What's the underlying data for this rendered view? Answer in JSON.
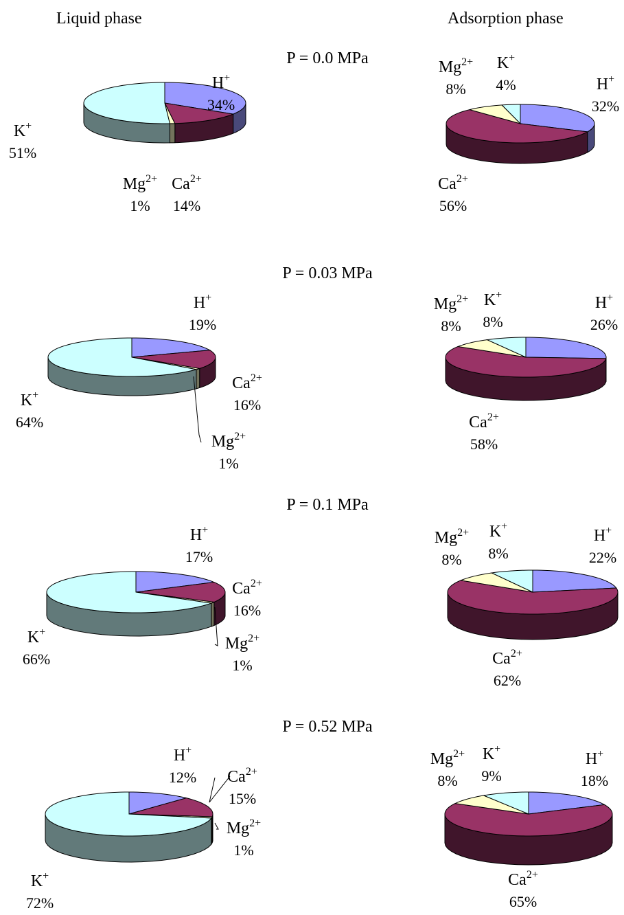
{
  "figure": {
    "liquid_header": "Liquid phase",
    "adsorption_header": "Adsorption phase"
  },
  "colors": {
    "H+": "#9999ff",
    "Ca2+": "#993366",
    "Mg2+": "#ffffcc",
    "K+": "#ccffff"
  },
  "chart_data": [
    {
      "type": "pie",
      "phase": "Liquid phase",
      "pressure": "P = 0.0 MPa",
      "slices": [
        {
          "ion": "H+",
          "value": 34,
          "label": "34%"
        },
        {
          "ion": "Ca2+",
          "value": 14,
          "label": "14%"
        },
        {
          "ion": "Mg2+",
          "value": 1,
          "label": "1%"
        },
        {
          "ion": "K+",
          "value": 51,
          "label": "51%"
        }
      ]
    },
    {
      "type": "pie",
      "phase": "Adsorption phase",
      "pressure": "P = 0.0 MPa",
      "slices": [
        {
          "ion": "H+",
          "value": 32,
          "label": "32%"
        },
        {
          "ion": "Ca2+",
          "value": 56,
          "label": "56%"
        },
        {
          "ion": "Mg2+",
          "value": 8,
          "label": "8%"
        },
        {
          "ion": "K+",
          "value": 4,
          "label": "4%"
        }
      ]
    },
    {
      "type": "pie",
      "phase": "Liquid phase",
      "pressure": "P = 0.03 MPa",
      "slices": [
        {
          "ion": "H+",
          "value": 19,
          "label": "19%"
        },
        {
          "ion": "Ca2+",
          "value": 16,
          "label": "16%"
        },
        {
          "ion": "Mg2+",
          "value": 1,
          "label": "1%"
        },
        {
          "ion": "K+",
          "value": 64,
          "label": "64%"
        }
      ]
    },
    {
      "type": "pie",
      "phase": "Adsorption phase",
      "pressure": "P = 0.03 MPa",
      "slices": [
        {
          "ion": "H+",
          "value": 26,
          "label": "26%"
        },
        {
          "ion": "Ca2+",
          "value": 58,
          "label": "58%"
        },
        {
          "ion": "Mg2+",
          "value": 8,
          "label": "8%"
        },
        {
          "ion": "K+",
          "value": 8,
          "label": "8%"
        }
      ]
    },
    {
      "type": "pie",
      "phase": "Liquid phase",
      "pressure": "P = 0.1 MPa",
      "slices": [
        {
          "ion": "H+",
          "value": 17,
          "label": "17%"
        },
        {
          "ion": "Ca2+",
          "value": 16,
          "label": "16%"
        },
        {
          "ion": "Mg2+",
          "value": 1,
          "label": "1%"
        },
        {
          "ion": "K+",
          "value": 66,
          "label": "66%"
        }
      ]
    },
    {
      "type": "pie",
      "phase": "Adsorption phase",
      "pressure": "P = 0.1 MPa",
      "slices": [
        {
          "ion": "H+",
          "value": 22,
          "label": "22%"
        },
        {
          "ion": "Ca2+",
          "value": 62,
          "label": "62%"
        },
        {
          "ion": "Mg2+",
          "value": 8,
          "label": "8%"
        },
        {
          "ion": "K+",
          "value": 8,
          "label": "8%"
        }
      ]
    },
    {
      "type": "pie",
      "phase": "Liquid phase",
      "pressure": "P = 0.52 MPa",
      "slices": [
        {
          "ion": "H+",
          "value": 12,
          "label": "12%"
        },
        {
          "ion": "Ca2+",
          "value": 15,
          "label": "15%"
        },
        {
          "ion": "Mg2+",
          "value": 1,
          "label": "1%"
        },
        {
          "ion": "K+",
          "value": 72,
          "label": "72%"
        }
      ]
    },
    {
      "type": "pie",
      "phase": "Adsorption phase",
      "pressure": "P = 0.52 MPa",
      "slices": [
        {
          "ion": "H+",
          "value": 18,
          "label": "18%"
        },
        {
          "ion": "Ca2+",
          "value": 65,
          "label": "65%"
        },
        {
          "ion": "Mg2+",
          "value": 8,
          "label": "8%"
        },
        {
          "ion": "K+",
          "value": 9,
          "label": "9%"
        }
      ]
    }
  ]
}
